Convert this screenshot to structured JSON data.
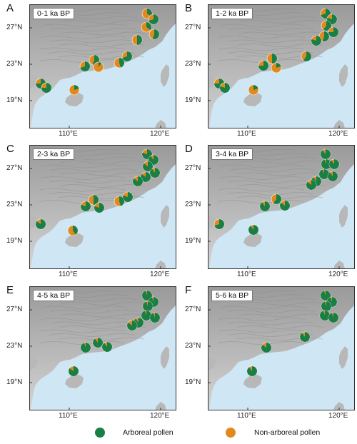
{
  "colors": {
    "arboreal": "#1a7f45",
    "non_arboreal": "#e08a1e",
    "sea": "#cfe6f5",
    "land": "#bdbdbd"
  },
  "axes": {
    "lat_labels": [
      "27°N",
      "23°N",
      "19°N"
    ],
    "lon_labels": [
      "110°E",
      "120°E"
    ]
  },
  "panels": [
    {
      "letter": "A",
      "period": "0-1 ka BP",
      "sites": [
        {
          "name": "",
          "arboreal": 0.35
        },
        {
          "name": "",
          "arboreal": 0.7
        },
        {
          "name": "",
          "arboreal": 0.35
        },
        {
          "name": "",
          "arboreal": 0.55
        },
        {
          "name": "",
          "arboreal": 0.5
        },
        {
          "name": "",
          "arboreal": 0.7
        },
        {
          "name": "",
          "arboreal": 0.45
        },
        {
          "name": "",
          "arboreal": 0.55
        },
        {
          "name": "",
          "arboreal": 0.7
        },
        {
          "name": "",
          "arboreal": 0.1
        },
        {
          "name": "",
          "arboreal": 0.75
        },
        {
          "name": "",
          "arboreal": 0.75
        },
        {
          "name": "",
          "arboreal": 0.2
        }
      ]
    },
    {
      "letter": "B",
      "period": "1-2 ka BP",
      "sites": [
        {
          "name": "",
          "arboreal": 0.7
        },
        {
          "name": "",
          "arboreal": 0.8
        },
        {
          "name": "",
          "arboreal": 0.6
        },
        {
          "name": "",
          "arboreal": 0.75
        },
        {
          "name": "",
          "arboreal": 0.55
        },
        {
          "name": "",
          "arboreal": 0.8
        },
        {
          "name": "",
          "arboreal": 0.6
        },
        {
          "name": "",
          "arboreal": 0.5
        },
        {
          "name": "",
          "arboreal": 0.75
        },
        {
          "name": "",
          "arboreal": 0.2
        },
        {
          "name": "",
          "arboreal": 0.75
        },
        {
          "name": "",
          "arboreal": 0.8
        },
        {
          "name": "",
          "arboreal": 0.2
        }
      ]
    },
    {
      "letter": "C",
      "period": "2-3 ka BP",
      "sites": [
        {
          "name": "",
          "arboreal": 0.8
        },
        {
          "name": "",
          "arboreal": 0.9
        },
        {
          "name": "",
          "arboreal": 0.85
        },
        {
          "name": "",
          "arboreal": 0.9
        },
        {
          "name": "",
          "arboreal": 0.85
        },
        {
          "name": "",
          "arboreal": 0.85
        },
        {
          "name": "",
          "arboreal": 0.8
        },
        {
          "name": "",
          "arboreal": 0.45
        },
        {
          "name": "",
          "arboreal": 0.5
        },
        {
          "name": "",
          "arboreal": 0.8
        },
        {
          "name": "",
          "arboreal": 0.8
        },
        {
          "name": "",
          "arboreal": 0.85
        },
        {
          "name": "",
          "arboreal": 0.4
        }
      ]
    },
    {
      "letter": "D",
      "period": "3-4 ka BP",
      "sites": [
        {
          "name": "",
          "arboreal": 0.9
        },
        {
          "name": "",
          "arboreal": 0.95
        },
        {
          "name": "",
          "arboreal": 0.9
        },
        {
          "name": "",
          "arboreal": 0.95
        },
        {
          "name": "",
          "arboreal": 0.9
        },
        {
          "name": "",
          "arboreal": 0.9
        },
        {
          "name": "",
          "arboreal": 0.85
        },
        {
          "name": "",
          "arboreal": 0.6
        },
        {
          "name": "",
          "arboreal": 0.85
        },
        {
          "name": "",
          "arboreal": 0.9
        },
        {
          "name": "",
          "arboreal": 0.9
        },
        {
          "name": "",
          "arboreal": 0.7
        }
      ]
    },
    {
      "letter": "E",
      "period": "4-5 ka BP",
      "sites": [
        {
          "name": "",
          "arboreal": 0.95
        },
        {
          "name": "",
          "arboreal": 0.95
        },
        {
          "name": "",
          "arboreal": 0.95
        },
        {
          "name": "",
          "arboreal": 0.95
        },
        {
          "name": "",
          "arboreal": 0.95
        },
        {
          "name": "",
          "arboreal": 0.9
        },
        {
          "name": "",
          "arboreal": 0.85
        },
        {
          "name": "",
          "arboreal": 0.9
        },
        {
          "name": "",
          "arboreal": 0.9
        },
        {
          "name": "",
          "arboreal": 0.95
        },
        {
          "name": "",
          "arboreal": 0.85
        }
      ]
    },
    {
      "letter": "F",
      "period": "5-6 ka BP",
      "sites": [
        {
          "name": "",
          "arboreal": 0.95
        },
        {
          "name": "",
          "arboreal": 0.95
        },
        {
          "name": "",
          "arboreal": 0.95
        },
        {
          "name": "",
          "arboreal": 0.95
        },
        {
          "name": "",
          "arboreal": 0.95
        },
        {
          "name": "",
          "arboreal": 0.9
        },
        {
          "name": "",
          "arboreal": 0.85
        },
        {
          "name": "",
          "arboreal": 0.9
        }
      ]
    }
  ],
  "legend": {
    "arboreal_label": "Arboreal pollen",
    "non_arboreal_label": "Non-arboreal pollen"
  }
}
